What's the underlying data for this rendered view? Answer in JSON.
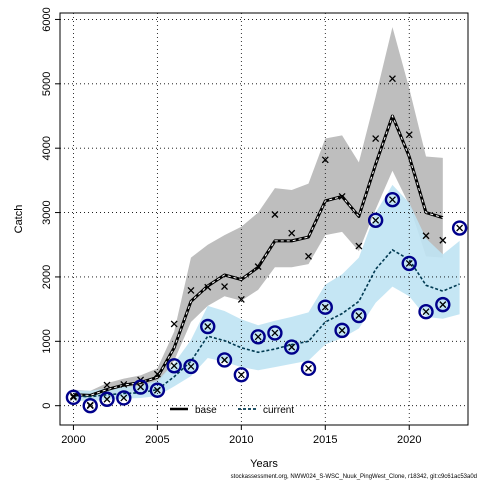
{
  "chart_data": {
    "type": "line",
    "xlabel": "Years",
    "ylabel": "Catch",
    "xlim": [
      1999.2,
      2023.5
    ],
    "ylim": [
      -300,
      6100
    ],
    "x_ticks": [
      2000,
      2005,
      2010,
      2015,
      2020
    ],
    "y_ticks": [
      0,
      1000,
      2000,
      3000,
      4000,
      5000,
      6000
    ],
    "grid": true,
    "legend_position": "bottom-center",
    "footnote": "stockassessment.org, NWW024_S-WSC_Nuuk_PingWest_Clone, r18342, git:c9c61ac53a0d",
    "colors": {
      "base_band": "#bebebe",
      "base_line": "#000000",
      "current_band": "#bfe3f3",
      "current_line": "#003a52",
      "obs_circle": "#00008b",
      "obs_cross": "#000000"
    },
    "series": [
      {
        "name": "base",
        "x": [
          2000,
          2001,
          2002,
          2003,
          2004,
          2005,
          2006,
          2007,
          2008,
          2009,
          2010,
          2011,
          2012,
          2013,
          2014,
          2015,
          2016,
          2017,
          2018,
          2019,
          2020,
          2021,
          2022
        ],
        "values": [
          170,
          160,
          250,
          320,
          360,
          440,
          900,
          1620,
          1860,
          2030,
          1960,
          2150,
          2560,
          2560,
          2620,
          3180,
          3250,
          2940,
          3750,
          4500,
          3870,
          3000,
          2920
        ],
        "lower": [
          100,
          90,
          150,
          200,
          240,
          320,
          700,
          1300,
          1550,
          1700,
          1630,
          1800,
          2150,
          2150,
          2200,
          2650,
          2700,
          2400,
          3050,
          3650,
          3120,
          2320,
          2300
        ],
        "upper": [
          250,
          230,
          350,
          420,
          470,
          580,
          1150,
          2300,
          2500,
          2650,
          2780,
          3000,
          3380,
          3350,
          3450,
          4150,
          4200,
          3780,
          4800,
          5880,
          4930,
          3870,
          3850
        ],
        "observed": [
          150,
          10,
          320,
          330,
          400,
          490,
          1270,
          1790,
          1840,
          1850,
          1650,
          2160,
          2970,
          2680,
          2320,
          3820,
          3250,
          2480,
          4150,
          5080,
          4210,
          2640,
          2570
        ]
      },
      {
        "name": "current",
        "x": [
          2000,
          2001,
          2002,
          2003,
          2004,
          2005,
          2006,
          2007,
          2008,
          2009,
          2010,
          2011,
          2012,
          2013,
          2014,
          2015,
          2016,
          2017,
          2018,
          2019,
          2020,
          2021,
          2022,
          2023
        ],
        "values": [
          150,
          140,
          170,
          190,
          200,
          250,
          450,
          690,
          1080,
          1010,
          900,
          830,
          880,
          950,
          1000,
          1300,
          1430,
          1620,
          2120,
          2420,
          2270,
          1870,
          1780,
          1890
        ],
        "lower": [
          80,
          70,
          90,
          110,
          120,
          150,
          300,
          460,
          740,
          680,
          600,
          550,
          600,
          650,
          700,
          950,
          1050,
          1200,
          1600,
          1850,
          1700,
          1380,
          1350,
          1420
        ],
        "upper": [
          240,
          230,
          270,
          290,
          310,
          390,
          660,
          1020,
          1550,
          1470,
          1340,
          1250,
          1320,
          1380,
          1450,
          1880,
          2040,
          2300,
          3000,
          3430,
          3150,
          2600,
          2350,
          2560
        ],
        "observed": [
          130,
          0,
          100,
          120,
          290,
          240,
          620,
          610,
          1230,
          710,
          480,
          1070,
          1130,
          910,
          580,
          1530,
          1170,
          1400,
          2880,
          3200,
          2210,
          1460,
          1570,
          2760
        ]
      }
    ]
  }
}
